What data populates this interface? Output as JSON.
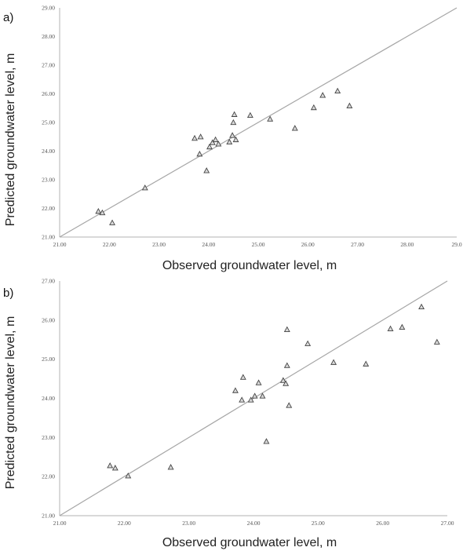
{
  "colors": {
    "axis": "#b3b3b3",
    "diagonal": "#a6a6a6",
    "marker_edge": "#444444",
    "marker_fill": "#d9d9d9",
    "tick_text": "#555555",
    "label_text": "#222222"
  },
  "chart_data": [
    {
      "type": "scatter",
      "panel_label": "a)",
      "xlabel": "Observed groundwater level, m",
      "ylabel": "Predicted groundwater level, m",
      "xlim": [
        21,
        29
      ],
      "ylim": [
        21,
        29
      ],
      "x_ticks": [
        "21.00",
        "22.00",
        "23.00",
        "24.00",
        "25.00",
        "26.00",
        "27.00",
        "28.00",
        "29.0"
      ],
      "y_ticks": [
        "21.00",
        "22.00",
        "23.00",
        "24.00",
        "25.00",
        "26.00",
        "27.00",
        "28.00",
        "29.00"
      ],
      "reference_line": "1:1",
      "marker": "triangle-open",
      "grid": false,
      "points": [
        {
          "x": 21.78,
          "y": 21.9
        },
        {
          "x": 21.86,
          "y": 21.85
        },
        {
          "x": 22.06,
          "y": 21.5
        },
        {
          "x": 22.72,
          "y": 22.72
        },
        {
          "x": 23.72,
          "y": 24.45
        },
        {
          "x": 23.82,
          "y": 23.9
        },
        {
          "x": 23.84,
          "y": 24.5
        },
        {
          "x": 23.96,
          "y": 23.32
        },
        {
          "x": 24.02,
          "y": 24.15
        },
        {
          "x": 24.08,
          "y": 24.3
        },
        {
          "x": 24.14,
          "y": 24.4
        },
        {
          "x": 24.2,
          "y": 24.25
        },
        {
          "x": 24.42,
          "y": 24.32
        },
        {
          "x": 24.48,
          "y": 24.55
        },
        {
          "x": 24.5,
          "y": 25.0
        },
        {
          "x": 24.52,
          "y": 25.28
        },
        {
          "x": 24.55,
          "y": 24.4
        },
        {
          "x": 24.84,
          "y": 25.25
        },
        {
          "x": 25.24,
          "y": 25.12
        },
        {
          "x": 25.74,
          "y": 24.8
        },
        {
          "x": 26.12,
          "y": 25.52
        },
        {
          "x": 26.3,
          "y": 25.95
        },
        {
          "x": 26.6,
          "y": 26.1
        },
        {
          "x": 26.84,
          "y": 25.58
        }
      ]
    },
    {
      "type": "scatter",
      "panel_label": "b)",
      "xlabel": "Observed groundwater level, m",
      "ylabel": "Predicted groundwater level, m",
      "xlim": [
        21,
        27
      ],
      "ylim": [
        21,
        27
      ],
      "x_ticks": [
        "21.00",
        "22.00",
        "23.00",
        "24.00",
        "25.00",
        "26.00",
        "27.00"
      ],
      "y_ticks": [
        "21.00",
        "22.00",
        "23.00",
        "24.00",
        "25.00",
        "26.00",
        "27.00"
      ],
      "reference_line": "1:1",
      "marker": "triangle-open",
      "grid": false,
      "points": [
        {
          "x": 21.78,
          "y": 22.28
        },
        {
          "x": 21.86,
          "y": 22.22
        },
        {
          "x": 22.06,
          "y": 22.02
        },
        {
          "x": 22.72,
          "y": 22.24
        },
        {
          "x": 23.72,
          "y": 24.2
        },
        {
          "x": 23.82,
          "y": 23.96
        },
        {
          "x": 23.84,
          "y": 24.54
        },
        {
          "x": 23.96,
          "y": 23.96
        },
        {
          "x": 24.02,
          "y": 24.06
        },
        {
          "x": 24.08,
          "y": 24.4
        },
        {
          "x": 24.14,
          "y": 24.06
        },
        {
          "x": 24.2,
          "y": 22.9
        },
        {
          "x": 24.46,
          "y": 24.46
        },
        {
          "x": 24.5,
          "y": 24.38
        },
        {
          "x": 24.52,
          "y": 24.84
        },
        {
          "x": 24.52,
          "y": 25.76
        },
        {
          "x": 24.55,
          "y": 23.82
        },
        {
          "x": 24.84,
          "y": 25.4
        },
        {
          "x": 25.24,
          "y": 24.92
        },
        {
          "x": 25.74,
          "y": 24.88
        },
        {
          "x": 26.12,
          "y": 25.78
        },
        {
          "x": 26.3,
          "y": 25.82
        },
        {
          "x": 26.6,
          "y": 26.34
        },
        {
          "x": 26.84,
          "y": 25.44
        }
      ]
    }
  ]
}
